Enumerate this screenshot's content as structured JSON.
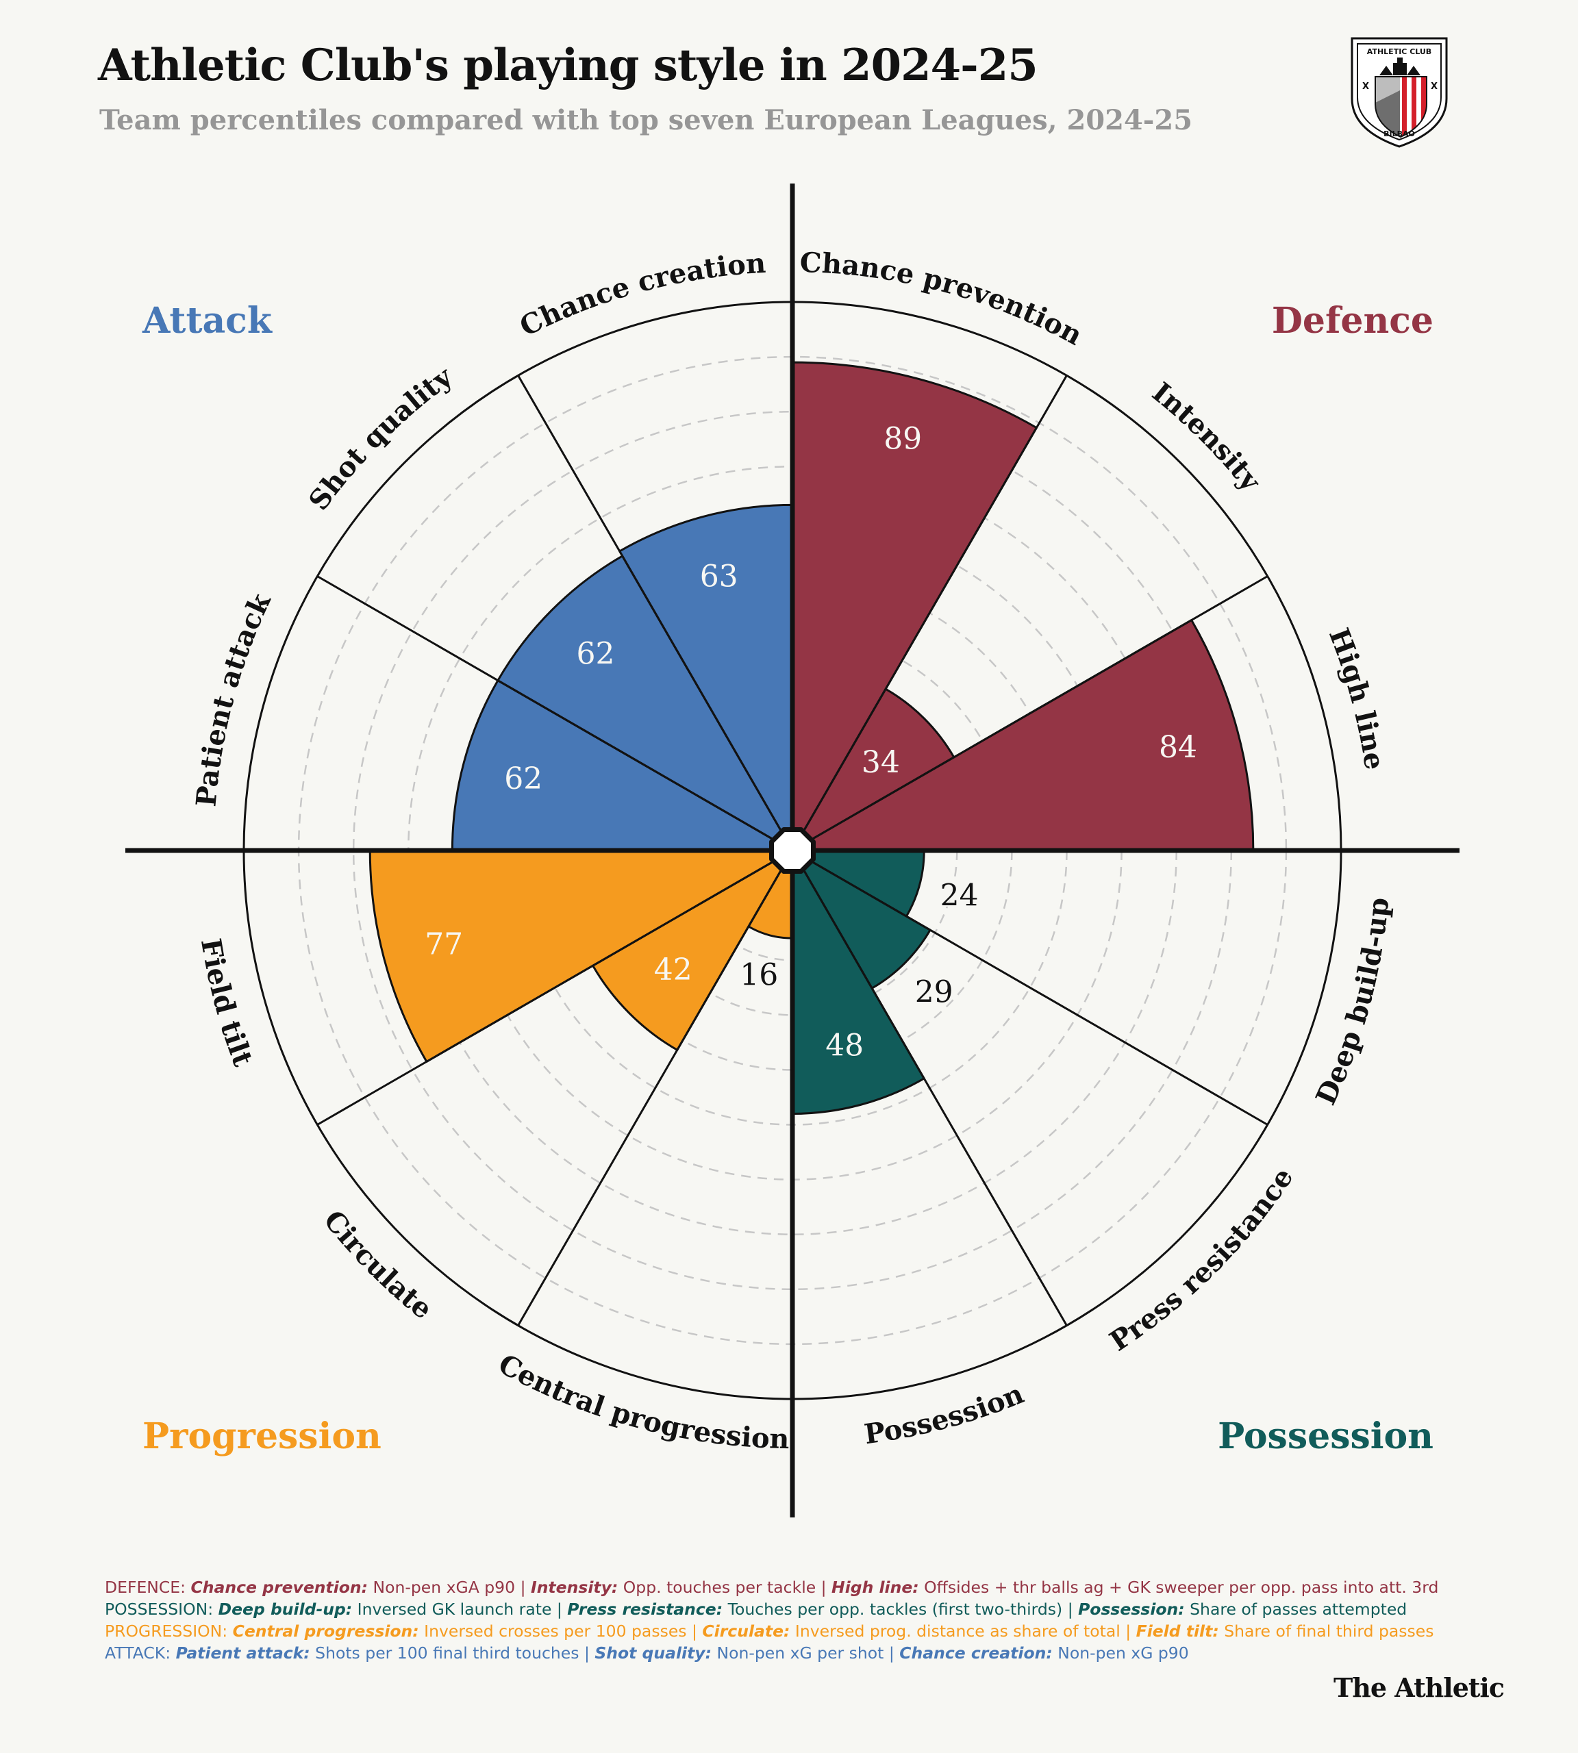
{
  "title": "Athletic Club's playing style in 2024-25",
  "subtitle": "Team percentiles compared with top seven European Leagues, 2024-25",
  "crest": {
    "top_text": "ATHLETIC CLUB",
    "bottom_text": "BILBAO",
    "icon": "athletic-club-crest"
  },
  "brand": "The Athletic",
  "colors": {
    "Defence": "#943545",
    "Possession": "#115c5a",
    "Progression": "#f59b1f",
    "Attack": "#4878b6"
  },
  "chart_data": {
    "type": "polar-bar",
    "range": [
      0,
      100
    ],
    "grid": true,
    "categories": [
      {
        "name": "Defence",
        "label": "Defence",
        "placement": "top-right"
      },
      {
        "name": "Possession",
        "label": "Possession",
        "placement": "bottom-right"
      },
      {
        "name": "Progression",
        "label": "Progression",
        "placement": "bottom-left"
      },
      {
        "name": "Attack",
        "label": "Attack",
        "placement": "top-left"
      }
    ],
    "metrics": [
      {
        "label": "Chance prevention",
        "category": "Defence",
        "value": 89
      },
      {
        "label": "Intensity",
        "category": "Defence",
        "value": 34
      },
      {
        "label": "High line",
        "category": "Defence",
        "value": 84
      },
      {
        "label": "Deep build-up",
        "category": "Possession",
        "value": 24
      },
      {
        "label": "Press resistance",
        "category": "Possession",
        "value": 29
      },
      {
        "label": "Possession",
        "category": "Possession",
        "value": 48
      },
      {
        "label": "Central progression",
        "category": "Progression",
        "value": 16
      },
      {
        "label": "Circulate",
        "category": "Progression",
        "value": 42
      },
      {
        "label": "Field tilt",
        "category": "Progression",
        "value": 77
      },
      {
        "label": "Patient attack",
        "category": "Attack",
        "value": 62
      },
      {
        "label": "Shot quality",
        "category": "Attack",
        "value": 62
      },
      {
        "label": "Chance creation",
        "category": "Attack",
        "value": 63
      }
    ]
  },
  "notes": [
    {
      "category": "Defence",
      "prefix": "DEFENCE: ",
      "items": [
        {
          "term": "Chance prevention:",
          "desc": " Non-pen xGA p90"
        },
        {
          "term": "Intensity:",
          "desc": " Opp. touches per tackle"
        },
        {
          "term": "High line:",
          "desc": " Offsides + thr balls ag + GK sweeper per opp. pass into att. 3rd"
        }
      ]
    },
    {
      "category": "Possession",
      "prefix": "POSSESSION: ",
      "items": [
        {
          "term": "Deep build-up:",
          "desc": " Inversed GK launch rate"
        },
        {
          "term": "Press resistance:",
          "desc": " Touches per opp. tackles (first two-thirds)"
        },
        {
          "term": "Possession:",
          "desc": " Share of passes attempted"
        }
      ]
    },
    {
      "category": "Progression",
      "prefix": "PROGRESSION: ",
      "items": [
        {
          "term": "Central progression:",
          "desc": " Inversed crosses per 100 passes"
        },
        {
          "term": "Circulate:",
          "desc": " Inversed prog. distance as share of total"
        },
        {
          "term": "Field tilt:",
          "desc": " Share of final third passes"
        }
      ]
    },
    {
      "category": "Attack",
      "prefix": "ATTACK: ",
      "items": [
        {
          "term": "Patient attack:",
          "desc": " Shots per 100 final third touches"
        },
        {
          "term": "Shot quality:",
          "desc": " Non-pen xG per shot"
        },
        {
          "term": "Chance creation:",
          "desc": " Non-pen xG p90"
        }
      ]
    }
  ]
}
